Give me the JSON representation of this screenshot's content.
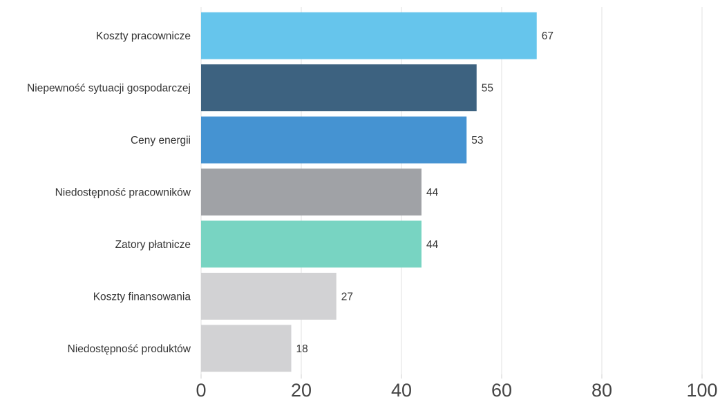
{
  "chart_data": {
    "type": "bar",
    "orientation": "horizontal",
    "categories": [
      "Koszty pracownicze",
      "Niepewność sytuacji gospodarczej",
      "Ceny energii",
      "Niedostępność pracowników",
      "Zatory płatnicze",
      "Koszty finansowania",
      "Niedostępność produktów"
    ],
    "values": [
      67,
      55,
      53,
      44,
      44,
      27,
      18
    ],
    "value_labels": [
      "67",
      "55",
      "53",
      "44",
      "44",
      "27",
      "18"
    ],
    "colors": [
      "#66c5ec",
      "#3d6280",
      "#4593d2",
      "#a0a2a6",
      "#78d4c2",
      "#d2d2d4",
      "#d2d2d4"
    ],
    "xlim": [
      0,
      100
    ],
    "xticks": [
      "0",
      "20",
      "40",
      "60",
      "80",
      "100"
    ],
    "grid": "vertical",
    "legend": "none",
    "title": "",
    "xlabel": "",
    "ylabel": ""
  }
}
